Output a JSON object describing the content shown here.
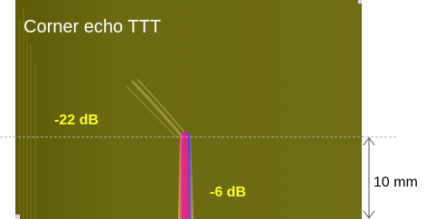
{
  "image": {
    "title": "Corner echo TTT",
    "annotations": [
      "-22 dB",
      "-6 dB"
    ]
  },
  "scale": {
    "label": "10 mm"
  }
}
